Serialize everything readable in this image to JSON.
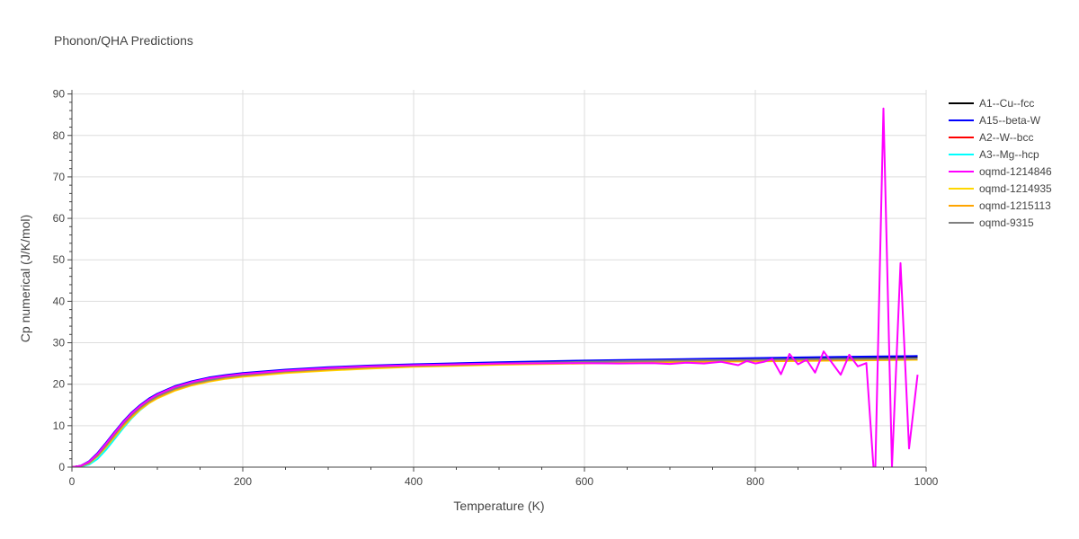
{
  "chart_data": {
    "type": "line",
    "title": "Phonon/QHA Predictions",
    "xlabel": "Temperature (K)",
    "ylabel": "Cp numerical (J/K/mol)",
    "xlim": [
      0,
      1000
    ],
    "ylim": [
      0,
      91
    ],
    "xticks": [
      0,
      200,
      400,
      600,
      800,
      1000
    ],
    "xtick_labels": [
      "0",
      "200",
      "400",
      "600",
      "800",
      "1000"
    ],
    "yticks": [
      0,
      10,
      20,
      30,
      40,
      50,
      60,
      70,
      80,
      90
    ],
    "ytick_labels": [
      "0",
      "10",
      "20",
      "30",
      "40",
      "50",
      "60",
      "70",
      "80",
      "90"
    ],
    "grid": true,
    "legend_position": "right",
    "x": [
      0,
      10,
      20,
      30,
      40,
      50,
      60,
      70,
      80,
      90,
      100,
      120,
      140,
      160,
      180,
      200,
      250,
      300,
      350,
      400,
      500,
      600,
      700,
      800,
      900,
      990
    ],
    "series": [
      {
        "name": "A1--Cu--fcc",
        "color": "#000000",
        "values": [
          0,
          0.3,
          1.3,
          3.3,
          5.8,
          8.4,
          10.9,
          13.1,
          14.9,
          16.4,
          17.6,
          19.4,
          20.6,
          21.5,
          22.1,
          22.6,
          23.4,
          24.0,
          24.4,
          24.7,
          25.2,
          25.6,
          25.9,
          26.2,
          26.4,
          26.6
        ]
      },
      {
        "name": "A15--beta-W",
        "color": "#0000ff",
        "values": [
          0,
          0.3,
          1.4,
          3.4,
          5.9,
          8.5,
          11.0,
          13.2,
          15.0,
          16.5,
          17.7,
          19.5,
          20.7,
          21.6,
          22.2,
          22.7,
          23.5,
          24.1,
          24.5,
          24.8,
          25.3,
          25.7,
          26.0,
          26.3,
          26.6,
          26.8
        ]
      },
      {
        "name": "A2--W--bcc",
        "color": "#ff0000",
        "values": [
          0,
          0.2,
          1.0,
          2.8,
          5.2,
          7.8,
          10.3,
          12.5,
          14.4,
          15.9,
          17.2,
          19.0,
          20.2,
          21.1,
          21.8,
          22.3,
          23.1,
          23.7,
          24.1,
          24.4,
          24.9,
          25.2,
          25.5,
          25.7,
          25.9,
          26.0
        ]
      },
      {
        "name": "A3--Mg--hcp",
        "color": "#00ffff",
        "values": [
          0,
          0.1,
          0.6,
          2.0,
          4.2,
          6.8,
          9.4,
          11.8,
          13.8,
          15.4,
          16.7,
          18.6,
          19.9,
          20.8,
          21.5,
          22.0,
          22.9,
          23.5,
          23.9,
          24.3,
          24.8,
          25.1,
          25.4,
          25.6,
          25.8,
          25.9
        ]
      },
      {
        "name": "oqmd-1214935",
        "color": "#ffd700",
        "values": [
          0,
          0.2,
          0.9,
          2.6,
          4.8,
          7.3,
          9.8,
          12.0,
          13.9,
          15.4,
          16.6,
          18.4,
          19.7,
          20.6,
          21.3,
          21.8,
          22.7,
          23.3,
          23.8,
          24.2,
          24.7,
          25.0,
          25.3,
          25.5,
          25.7,
          25.9
        ]
      },
      {
        "name": "oqmd-1215113",
        "color": "#ffa500",
        "values": [
          0,
          0.2,
          1.0,
          2.7,
          5.0,
          7.5,
          10.0,
          12.2,
          14.1,
          15.6,
          16.8,
          18.6,
          19.9,
          20.8,
          21.5,
          22.0,
          22.9,
          23.5,
          24.0,
          24.3,
          24.8,
          25.1,
          25.4,
          25.6,
          25.8,
          26.0
        ]
      },
      {
        "name": "oqmd-9315",
        "color": "#808080",
        "values": [
          0,
          0.2,
          1.1,
          2.9,
          5.3,
          7.9,
          10.4,
          12.6,
          14.4,
          15.9,
          17.1,
          18.9,
          20.1,
          21.0,
          21.7,
          22.2,
          23.1,
          23.7,
          24.2,
          24.5,
          25.0,
          25.4,
          25.7,
          25.9,
          26.1,
          26.2
        ]
      },
      {
        "name": "oqmd-1214846",
        "color": "#ff00ff",
        "x": [
          0,
          10,
          20,
          30,
          40,
          50,
          60,
          70,
          80,
          90,
          100,
          120,
          140,
          160,
          180,
          200,
          250,
          300,
          350,
          400,
          500,
          600,
          640,
          680,
          700,
          720,
          740,
          760,
          770,
          780,
          790,
          800,
          810,
          820,
          830,
          840,
          850,
          860,
          870,
          880,
          890,
          900,
          910,
          920,
          930,
          940,
          950,
          960,
          970,
          980,
          990
        ],
        "values": [
          0,
          0.3,
          1.3,
          3.2,
          5.7,
          8.3,
          10.8,
          13.0,
          14.8,
          16.3,
          17.5,
          19.3,
          20.5,
          21.4,
          22.0,
          22.5,
          23.3,
          23.9,
          24.3,
          24.6,
          25.0,
          25.1,
          25.0,
          25.1,
          24.9,
          25.2,
          25.0,
          25.4,
          25.0,
          24.6,
          25.6,
          25.0,
          25.4,
          26.1,
          22.4,
          27.3,
          24.8,
          25.9,
          22.8,
          27.9,
          25.1,
          22.3,
          27.1,
          24.3,
          25.1,
          -5.0,
          86.5,
          0,
          49.2,
          4.5,
          22.3
        ]
      }
    ]
  }
}
